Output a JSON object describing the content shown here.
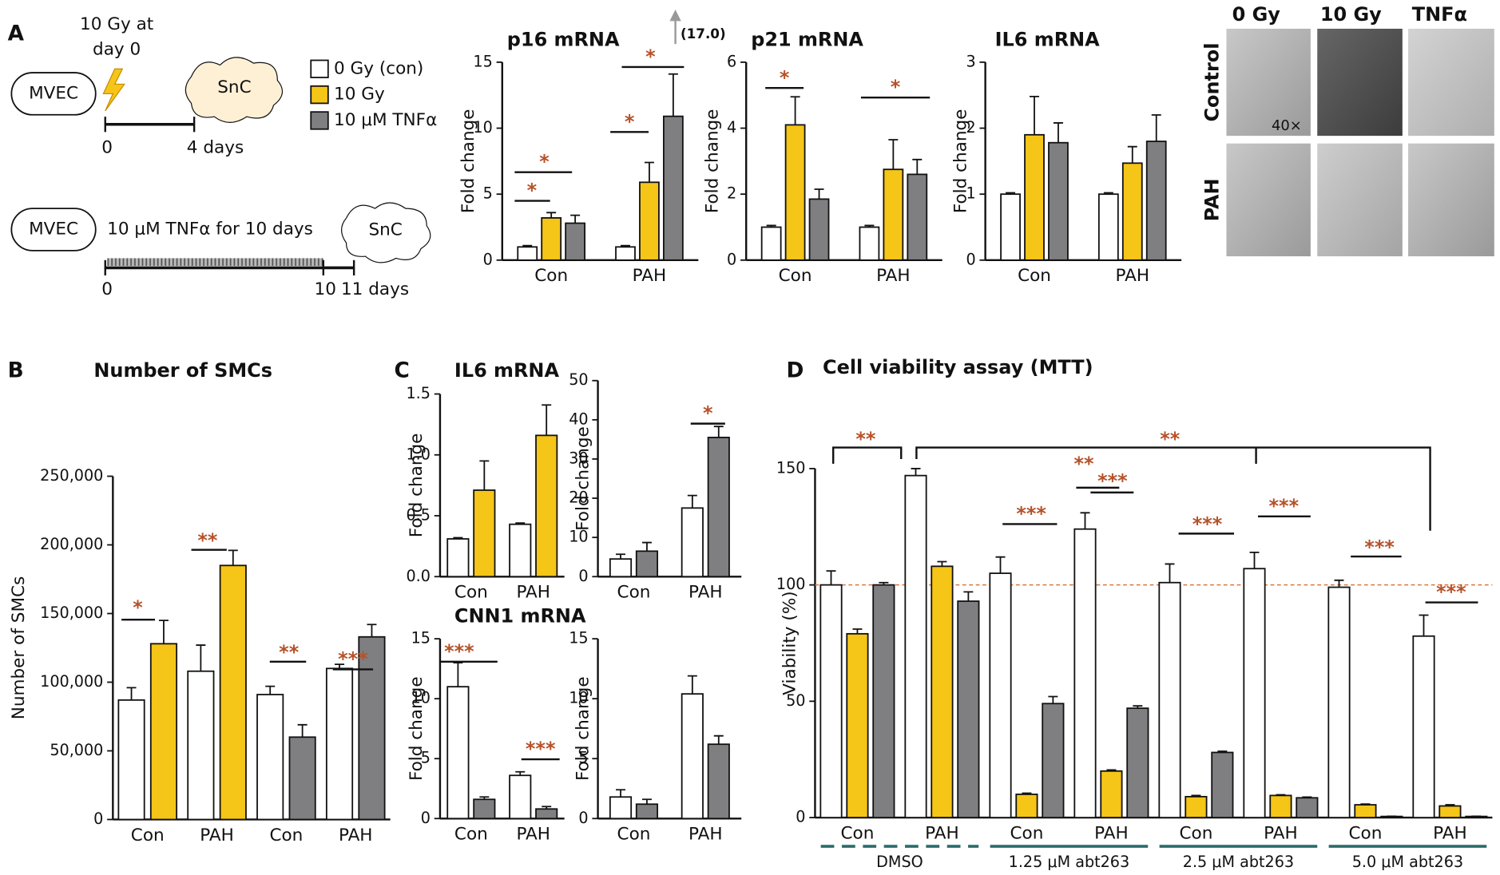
{
  "panel_labels": [
    "A",
    "B",
    "C",
    "D"
  ],
  "schematic": {
    "dose": [
      "10 Gy at",
      "day 0"
    ],
    "cells": [
      "MVEC",
      "MVEC"
    ],
    "results": [
      "SnC",
      "SnC"
    ],
    "timeline1": [
      "0",
      "4 days"
    ],
    "treatment": "10 μM TNFα for 10 days",
    "timeline2": [
      "0",
      "10",
      "11 days"
    ]
  },
  "micrographs": {
    "columns": [
      "0 Gy",
      "10 Gy",
      "TNFα"
    ],
    "rows": [
      "Control",
      "PAH"
    ],
    "magnification": "40×"
  },
  "chart_data": [
    {
      "type": "bar",
      "title": "p16 mRNA",
      "ylabel": "Fold change",
      "categories": [
        "Con",
        "PAH"
      ],
      "series": [
        {
          "name": "0 Gy (con)",
          "color": "#ffffff",
          "values": [
            1,
            1
          ],
          "errors": [
            0.1,
            0.1
          ]
        },
        {
          "name": "10 Gy",
          "color": "#f5c518",
          "values": [
            3.2,
            5.9
          ],
          "errors": [
            0.4,
            1.5
          ]
        },
        {
          "name": "10 μM TNFα",
          "color": "#7f7f82",
          "values": [
            2.8,
            10.9
          ],
          "errors": [
            0.6,
            3.2
          ]
        }
      ],
      "ylim": [
        0,
        15
      ],
      "yticks": [
        0,
        5,
        10,
        15
      ],
      "annotations": [
        "*",
        "*",
        "*",
        "*",
        "(17.0)"
      ]
    },
    {
      "type": "bar",
      "title": "p21 mRNA",
      "ylabel": "Fold change",
      "categories": [
        "Con",
        "PAH"
      ],
      "series": [
        {
          "color": "#ffffff",
          "values": [
            1,
            1
          ],
          "errors": [
            0.05,
            0.05
          ]
        },
        {
          "color": "#f5c518",
          "values": [
            4.1,
            2.75
          ],
          "errors": [
            0.85,
            0.9
          ]
        },
        {
          "color": "#7f7f82",
          "values": [
            1.85,
            2.6
          ],
          "errors": [
            0.3,
            0.45
          ]
        }
      ],
      "ylim": [
        0,
        6
      ],
      "yticks": [
        0,
        2,
        4,
        6
      ],
      "annotations": [
        "*",
        "*"
      ]
    },
    {
      "type": "bar",
      "title": "IL6 mRNA",
      "ylabel": "Fold change",
      "categories": [
        "Con",
        "PAH"
      ],
      "series": [
        {
          "color": "#ffffff",
          "values": [
            1,
            1
          ],
          "errors": [
            0.02,
            0.02
          ]
        },
        {
          "color": "#f5c518",
          "values": [
            1.9,
            1.47
          ],
          "errors": [
            0.58,
            0.25
          ]
        },
        {
          "color": "#7f7f82",
          "values": [
            1.78,
            1.8
          ],
          "errors": [
            0.3,
            0.4
          ]
        }
      ],
      "ylim": [
        0,
        3
      ],
      "yticks": [
        0,
        1,
        2,
        3
      ],
      "annotations": []
    },
    {
      "type": "bar",
      "title": "Number of SMCs",
      "ylabel": "Number of SMCs",
      "categories": [
        "Con",
        "PAH",
        "Con",
        "PAH"
      ],
      "series": [
        {
          "color": "#ffffff",
          "values": [
            87000,
            108000,
            91000,
            110000
          ],
          "errors": [
            9000,
            19000,
            6000,
            3000
          ]
        },
        {
          "color": "#f5c518",
          "values": [
            128000,
            185000,
            null,
            null
          ],
          "errors": [
            17000,
            11000,
            null,
            null
          ]
        },
        {
          "color": "#7f7f82",
          "values": [
            null,
            null,
            60000,
            133000
          ],
          "errors": [
            null,
            null,
            9000,
            9000
          ]
        }
      ],
      "ylim": [
        0,
        250000
      ],
      "yticks": [
        0,
        {
          "value": 50000,
          "label": "50,000"
        },
        {
          "value": 100000,
          "label": "100,000"
        },
        {
          "value": 150000,
          "label": "150,000"
        },
        {
          "value": 200000,
          "label": "200,000"
        },
        {
          "value": 250000,
          "label": "250,000"
        }
      ],
      "annotations": [
        "*",
        "**",
        "**",
        "***"
      ]
    },
    {
      "type": "bar",
      "title": "IL6 mRNA",
      "ylabel": "Fold change",
      "categories": [
        "Con",
        "PAH"
      ],
      "series": [
        {
          "color": "#ffffff",
          "values": [
            0.31,
            0.43
          ],
          "errors": [
            0.01,
            0.01
          ]
        },
        {
          "color": "#f5c518",
          "values": [
            0.71,
            1.16
          ],
          "errors": [
            0.24,
            0.25
          ]
        }
      ],
      "ylim": [
        0,
        1.5
      ],
      "yticks": [
        {
          "value": 0,
          "label": "0.0"
        },
        0.5,
        {
          "value": 1,
          "label": "1.0"
        },
        1.5
      ],
      "annotations": []
    },
    {
      "type": "bar",
      "ylabel": "Fold change",
      "categories": [
        "Con",
        "PAH"
      ],
      "series": [
        {
          "color": "#ffffff",
          "values": [
            4.5,
            17.5
          ],
          "errors": [
            1.2,
            3.2
          ]
        },
        {
          "color": "#7f7f82",
          "values": [
            6.5,
            35.5
          ],
          "errors": [
            2.2,
            2.8
          ]
        }
      ],
      "ylim": [
        0,
        50
      ],
      "yticks": [
        0,
        10,
        20,
        30,
        40,
        50
      ],
      "annotations": [
        "*"
      ]
    },
    {
      "type": "bar",
      "title": "CNN1 mRNA",
      "ylabel": "Fold change",
      "categories": [
        "Con",
        "PAH"
      ],
      "series": [
        {
          "color": "#ffffff",
          "values": [
            11,
            3.6
          ],
          "errors": [
            2,
            0.3
          ]
        },
        {
          "color": "#7f7f82",
          "values": [
            1.6,
            0.8
          ],
          "errors": [
            0.2,
            0.2
          ]
        }
      ],
      "ylim": [
        0,
        15
      ],
      "yticks": [
        0,
        5,
        10,
        15
      ],
      "annotations": [
        "***",
        "***"
      ]
    },
    {
      "type": "bar",
      "ylabel": "Fold change",
      "categories": [
        "Con",
        "PAH"
      ],
      "series": [
        {
          "color": "#ffffff",
          "values": [
            1.8,
            10.4
          ],
          "errors": [
            0.6,
            1.5
          ]
        },
        {
          "color": "#7f7f82",
          "values": [
            1.2,
            6.2
          ],
          "errors": [
            0.4,
            0.7
          ]
        }
      ],
      "ylim": [
        0,
        15
      ],
      "yticks": [
        0,
        5,
        10,
        15
      ],
      "annotations": []
    },
    {
      "type": "bar",
      "title": "Cell viability assay (MTT)",
      "ylabel": "Viability (%)",
      "categories": [
        "Con",
        "PAH",
        "Con",
        "PAH",
        "Con",
        "PAH",
        "Con",
        "PAH"
      ],
      "groups": [
        "DMSO",
        "1.25 μM abt263",
        "2.5 μM abt263",
        "5.0 μM abt263"
      ],
      "series": [
        {
          "color": "#ffffff",
          "values": [
            100,
            147,
            105,
            124,
            101,
            107,
            99,
            78
          ],
          "errors": [
            6,
            3,
            7,
            7,
            8,
            7,
            3,
            9
          ]
        },
        {
          "color": "#f5c518",
          "values": [
            79,
            108,
            10,
            20,
            9,
            9.5,
            5.5,
            5
          ],
          "errors": [
            2,
            2,
            0.5,
            0.5,
            0.5,
            0.3,
            0.3,
            0.5
          ]
        },
        {
          "color": "#7f7f82",
          "values": [
            100,
            93,
            49,
            47,
            28,
            8.5,
            0.5,
            0.5
          ],
          "errors": [
            1,
            4,
            3,
            1,
            0.5,
            0.3,
            0.1,
            0.1
          ]
        }
      ],
      "ylim": [
        0,
        150
      ],
      "yticks": [
        0,
        50,
        100,
        150
      ],
      "ref_line": 100,
      "annotations": [
        "**",
        "**",
        "**",
        "***",
        "***",
        "***",
        "***",
        "***",
        "***"
      ]
    }
  ]
}
